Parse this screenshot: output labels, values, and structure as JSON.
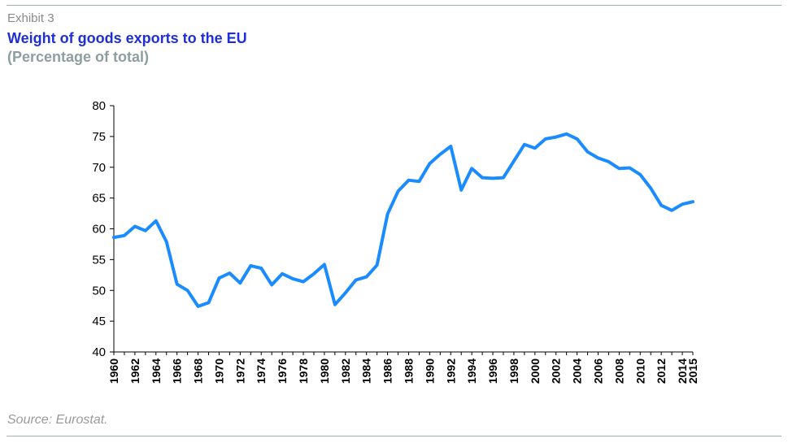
{
  "header": {
    "exhibit": "Exhibit 3",
    "title": "Weight of goods exports to the EU",
    "subtitle": "(Percentage of total)"
  },
  "footer": {
    "source": "Source: Eurostat."
  },
  "colors": {
    "line": "#1a8cff",
    "title": "#1f2fd6",
    "subtitle": "#8e9ea0",
    "rule": "#9fb3ae"
  },
  "chart_data": {
    "type": "line",
    "title": "Weight of goods exports to the EU",
    "subtitle": "(Percentage of total)",
    "xlabel": "",
    "ylabel": "",
    "ylim": [
      40,
      80
    ],
    "yticks": [
      40,
      45,
      50,
      55,
      60,
      65,
      70,
      75,
      80
    ],
    "xticks": [
      1960,
      1962,
      1964,
      1966,
      1968,
      1970,
      1972,
      1974,
      1976,
      1978,
      1980,
      1982,
      1984,
      1986,
      1988,
      1990,
      1992,
      1994,
      1996,
      1998,
      2000,
      2002,
      2004,
      2006,
      2008,
      2010,
      2012,
      2014,
      2015
    ],
    "grid": false,
    "legend": "none",
    "x": [
      1960,
      1961,
      1962,
      1963,
      1964,
      1965,
      1966,
      1967,
      1968,
      1969,
      1970,
      1971,
      1972,
      1973,
      1974,
      1975,
      1976,
      1977,
      1978,
      1979,
      1980,
      1981,
      1982,
      1983,
      1984,
      1985,
      1986,
      1987,
      1988,
      1989,
      1990,
      1991,
      1992,
      1993,
      1994,
      1995,
      1996,
      1997,
      1998,
      1999,
      2000,
      2001,
      2002,
      2003,
      2004,
      2005,
      2006,
      2007,
      2008,
      2009,
      2010,
      2011,
      2012,
      2013,
      2014,
      2015
    ],
    "series": [
      {
        "values": [
          58.6,
          58.9,
          60.4,
          59.7,
          61.3,
          57.9,
          51.0,
          50.0,
          47.4,
          48.0,
          52.0,
          52.8,
          51.2,
          54.0,
          53.6,
          50.9,
          52.7,
          51.9,
          51.4,
          52.7,
          54.2,
          47.7,
          49.6,
          51.7,
          52.2,
          54.1,
          62.4,
          66.1,
          67.9,
          67.7,
          70.6,
          72.1,
          73.4,
          66.3,
          69.8,
          68.3,
          68.2,
          68.3,
          71.0,
          73.7,
          73.1,
          74.6,
          74.9,
          75.4,
          74.6,
          72.5,
          71.5,
          70.9,
          69.8,
          69.9,
          68.8,
          66.6,
          63.8,
          63.0,
          64.0,
          64.4
        ]
      }
    ]
  },
  "source": "Source: Eurostat."
}
